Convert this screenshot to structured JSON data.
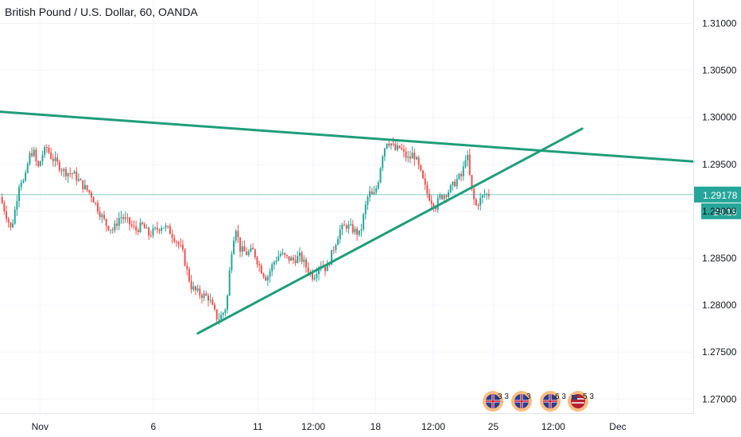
{
  "chart_data": {
    "type": "candlestick",
    "title": "British Pound / U.S. Dollar, 60, OANDA",
    "y_ticks": [
      "1.31000",
      "1.30500",
      "1.30000",
      "1.29500",
      "1.29000",
      "1.28500",
      "1.28000",
      "1.27500",
      "1.27000"
    ],
    "y_tick_values": [
      1.31,
      1.305,
      1.3,
      1.295,
      1.29,
      1.285,
      1.28,
      1.275,
      1.27
    ],
    "ylim": [
      1.2685,
      1.3125
    ],
    "x_ticks": [
      "Nov",
      "6",
      "11",
      "12:00",
      "18",
      "12:00",
      "25",
      "12:00",
      "Dec"
    ],
    "x_tick_positions": [
      0.5,
      5.6,
      10.3,
      12.8,
      15.6,
      18.2,
      20.9,
      23.6,
      26.5
    ],
    "xlim": [
      -1.3,
      29.9
    ],
    "current_price": "1.29178",
    "current_value": 1.29178,
    "countdown": "24:19",
    "grid": true,
    "colors": {
      "up": "#26a69a",
      "down": "#ef5350",
      "trendline": "#1f9d7b",
      "price_line": "#26a69a",
      "grid": "#f0f3fa"
    },
    "trendlines": [
      {
        "x1": -1.3,
        "y1": 1.3006,
        "x2": 29.9,
        "y2": 1.2953
      },
      {
        "x1": 7.6,
        "y1": 1.277,
        "x2": 24.9,
        "y2": 1.2988
      }
    ],
    "close_path": [
      [
        -1.3,
        1.2915
      ],
      [
        -1.0,
        1.2895
      ],
      [
        -0.8,
        1.288
      ],
      [
        -0.6,
        1.2905
      ],
      [
        -0.4,
        1.2935
      ],
      [
        -0.2,
        1.293
      ],
      [
        0.0,
        1.2958
      ],
      [
        0.2,
        1.2965
      ],
      [
        0.4,
        1.2945
      ],
      [
        0.6,
        1.296
      ],
      [
        0.8,
        1.2968
      ],
      [
        1.0,
        1.2958
      ],
      [
        1.3,
        1.295
      ],
      [
        1.6,
        1.2942
      ],
      [
        2.0,
        1.294
      ],
      [
        2.4,
        1.2928
      ],
      [
        2.8,
        1.2918
      ],
      [
        3.2,
        1.2898
      ],
      [
        3.5,
        1.2885
      ],
      [
        3.8,
        1.288
      ],
      [
        4.1,
        1.2895
      ],
      [
        4.4,
        1.289
      ],
      [
        4.8,
        1.288
      ],
      [
        5.1,
        1.2885
      ],
      [
        5.4,
        1.2875
      ],
      [
        5.7,
        1.288
      ],
      [
        6.0,
        1.2885
      ],
      [
        6.3,
        1.288
      ],
      [
        6.6,
        1.287
      ],
      [
        6.9,
        1.2858
      ],
      [
        7.1,
        1.2838
      ],
      [
        7.3,
        1.282
      ],
      [
        7.5,
        1.2815
      ],
      [
        7.7,
        1.2812
      ],
      [
        7.9,
        1.281
      ],
      [
        8.1,
        1.2808
      ],
      [
        8.3,
        1.2795
      ],
      [
        8.5,
        1.2785
      ],
      [
        8.7,
        1.279
      ],
      [
        8.9,
        1.28
      ],
      [
        9.1,
        1.2855
      ],
      [
        9.3,
        1.2885
      ],
      [
        9.5,
        1.286
      ],
      [
        9.8,
        1.2855
      ],
      [
        10.1,
        1.2858
      ],
      [
        10.4,
        1.284
      ],
      [
        10.7,
        1.2828
      ],
      [
        11.0,
        1.2845
      ],
      [
        11.3,
        1.2855
      ],
      [
        11.6,
        1.285
      ],
      [
        11.9,
        1.2848
      ],
      [
        12.2,
        1.2852
      ],
      [
        12.5,
        1.284
      ],
      [
        12.8,
        1.283
      ],
      [
        13.1,
        1.2845
      ],
      [
        13.4,
        1.2838
      ],
      [
        13.7,
        1.286
      ],
      [
        14.0,
        1.288
      ],
      [
        14.3,
        1.2885
      ],
      [
        14.6,
        1.288
      ],
      [
        14.9,
        1.2875
      ],
      [
        15.1,
        1.29
      ],
      [
        15.3,
        1.292
      ],
      [
        15.5,
        1.2915
      ],
      [
        15.7,
        1.293
      ],
      [
        15.9,
        1.296
      ],
      [
        16.1,
        1.2975
      ],
      [
        16.3,
        1.2972
      ],
      [
        16.5,
        1.2965
      ],
      [
        16.7,
        1.2968
      ],
      [
        16.9,
        1.296
      ],
      [
        17.1,
        1.2955
      ],
      [
        17.3,
        1.2962
      ],
      [
        17.5,
        1.295
      ],
      [
        17.7,
        1.2935
      ],
      [
        17.9,
        1.292
      ],
      [
        18.1,
        1.2912
      ],
      [
        18.3,
        1.2905
      ],
      [
        18.5,
        1.2915
      ],
      [
        18.7,
        1.2918
      ],
      [
        18.9,
        1.2922
      ],
      [
        19.1,
        1.2928
      ],
      [
        19.3,
        1.2935
      ],
      [
        19.5,
        1.2938
      ],
      [
        19.7,
        1.2965
      ],
      [
        19.9,
        1.2925
      ],
      [
        20.1,
        1.2905
      ],
      [
        20.3,
        1.2912
      ],
      [
        20.5,
        1.2918
      ],
      [
        20.7,
        1.2918
      ]
    ],
    "events": [
      {
        "flag": "gb",
        "label": "3 3"
      },
      {
        "flag": "gb",
        "label": "3"
      },
      {
        "flag": "gb",
        "label": "6 3"
      },
      {
        "flag": "us",
        "label": "5 3"
      }
    ]
  }
}
